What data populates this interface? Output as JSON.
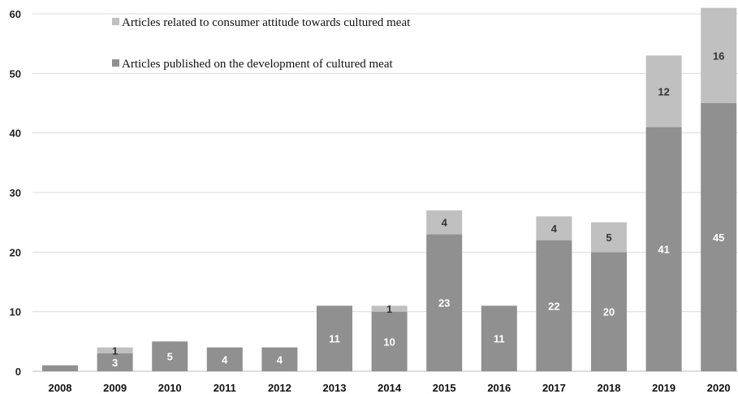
{
  "chart_data": {
    "type": "bar",
    "stacked": true,
    "categories": [
      "2008",
      "2009",
      "2010",
      "2011",
      "2012",
      "2013",
      "2014",
      "2015",
      "2016",
      "2017",
      "2018",
      "2019",
      "2020"
    ],
    "series": [
      {
        "name": "Articles published on the development of cultured meat",
        "color": "#909090",
        "values": [
          1,
          3,
          5,
          4,
          4,
          11,
          10,
          23,
          11,
          22,
          20,
          41,
          45
        ],
        "labels": [
          null,
          "3",
          "5",
          "4",
          "4",
          "11",
          "10",
          "23",
          "11",
          "22",
          "20",
          "41",
          "45"
        ]
      },
      {
        "name": "Articles related to consumer attitude towards cultured meat",
        "color": "#c0c0c0",
        "values": [
          0,
          1,
          0,
          0,
          0,
          0,
          1,
          4,
          0,
          4,
          5,
          12,
          16
        ],
        "labels": [
          null,
          "1",
          null,
          null,
          null,
          null,
          "1",
          "4",
          null,
          "4",
          "5",
          "12",
          "16"
        ]
      }
    ],
    "yticks": [
      "0",
      "10",
      "20",
      "30",
      "40",
      "50",
      "60"
    ],
    "ylim": [
      0,
      60
    ],
    "grid": true,
    "legend_position": "top-left",
    "title": "",
    "xlabel": "",
    "ylabel": ""
  }
}
